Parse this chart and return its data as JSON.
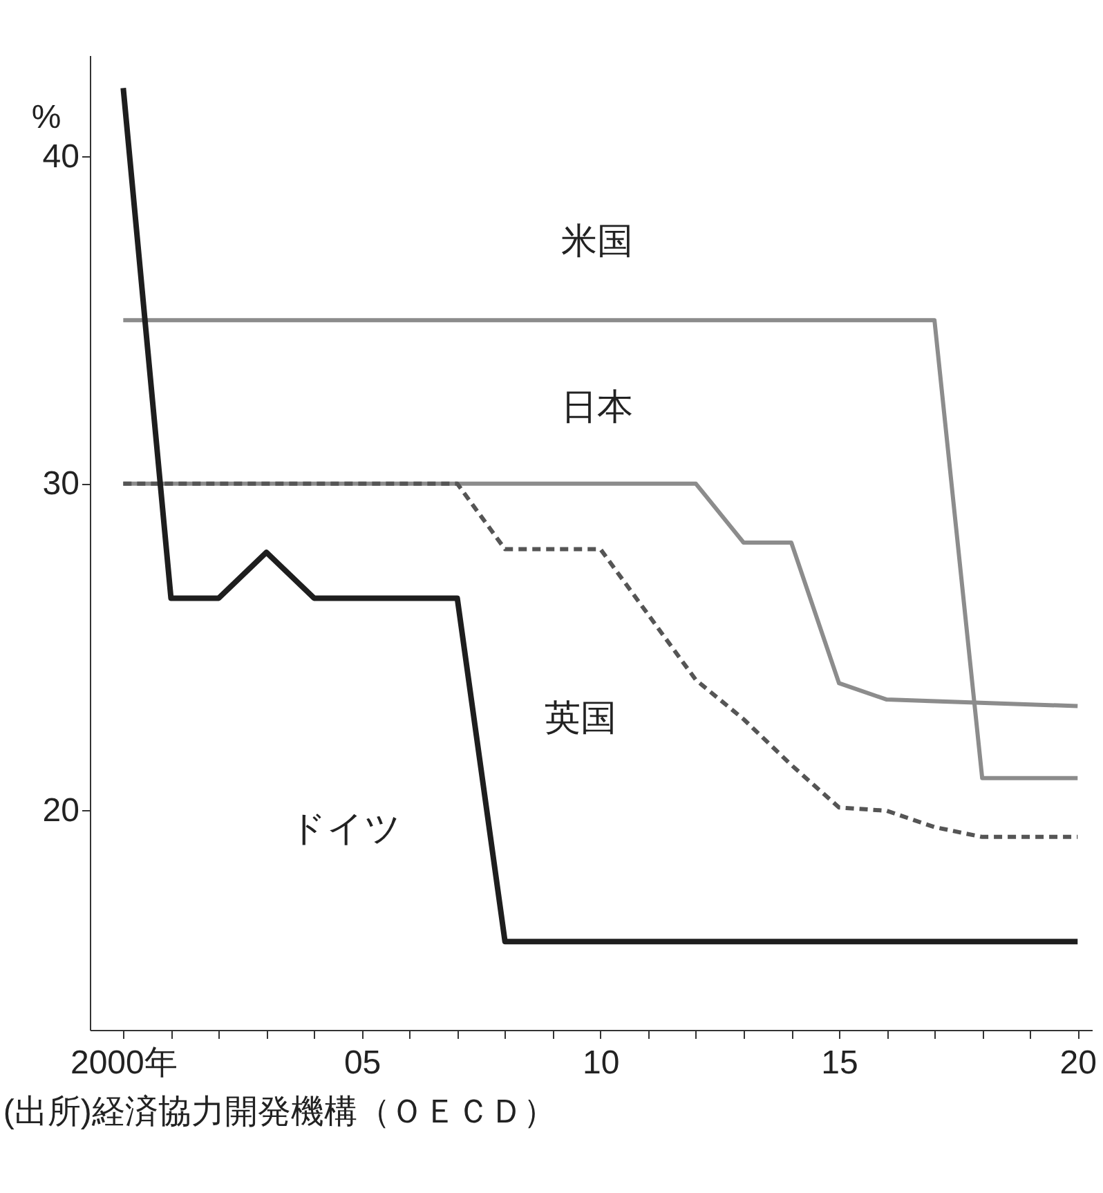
{
  "chart_data": {
    "type": "line",
    "ylabel": "%",
    "annotations": [
      "(出所)経済協力開発機構（ＯＥＣＤ）"
    ],
    "xlim": [
      1999.3,
      2020.3
    ],
    "ylim": [
      13.3,
      43.1
    ],
    "xticks": [
      {
        "value": 2000,
        "label": "2000年"
      },
      {
        "value": 2001,
        "label": null
      },
      {
        "value": 2002,
        "label": null
      },
      {
        "value": 2003,
        "label": null
      },
      {
        "value": 2004,
        "label": null
      },
      {
        "value": 2005,
        "label": "05"
      },
      {
        "value": 2006,
        "label": null
      },
      {
        "value": 2007,
        "label": null
      },
      {
        "value": 2008,
        "label": null
      },
      {
        "value": 2009,
        "label": null
      },
      {
        "value": 2010,
        "label": "10"
      },
      {
        "value": 2011,
        "label": null
      },
      {
        "value": 2012,
        "label": null
      },
      {
        "value": 2013,
        "label": null
      },
      {
        "value": 2014,
        "label": null
      },
      {
        "value": 2015,
        "label": "15"
      },
      {
        "value": 2016,
        "label": null
      },
      {
        "value": 2017,
        "label": null
      },
      {
        "value": 2018,
        "label": null
      },
      {
        "value": 2019,
        "label": null
      },
      {
        "value": 2020,
        "label": "20"
      }
    ],
    "yticks": [
      20,
      30,
      40
    ],
    "grid": false,
    "legend": false,
    "series": [
      {
        "name": "米国",
        "color": "#8c8c8c",
        "line_style": "solid",
        "x": [
          2000,
          2017,
          2018,
          2020
        ],
        "values": [
          35.0,
          35.0,
          21.0,
          21.0
        ]
      },
      {
        "name": "日本",
        "color": "#8c8c8c",
        "line_style": "solid",
        "x": [
          2000,
          2012,
          2013,
          2014,
          2015,
          2016,
          2020
        ],
        "values": [
          30.0,
          30.0,
          28.2,
          28.2,
          23.9,
          23.4,
          23.2
        ]
      },
      {
        "name": "英国",
        "color": "#555555",
        "line_style": "dashed",
        "x": [
          2000,
          2007,
          2008,
          2010,
          2011,
          2012,
          2013,
          2014,
          2015,
          2016,
          2017,
          2018,
          2020
        ],
        "values": [
          30.0,
          30.0,
          28.0,
          28.0,
          26.0,
          24.0,
          22.8,
          21.4,
          20.1,
          20.0,
          19.5,
          19.2,
          19.2
        ]
      },
      {
        "name": "ドイツ",
        "color": "#1e1e1e",
        "line_style": "solid",
        "x": [
          2000,
          2001,
          2002,
          2003,
          2004,
          2007,
          2008,
          2020
        ],
        "values": [
          42.1,
          26.5,
          26.5,
          27.9,
          26.5,
          26.5,
          16.0,
          16.0
        ]
      }
    ]
  }
}
